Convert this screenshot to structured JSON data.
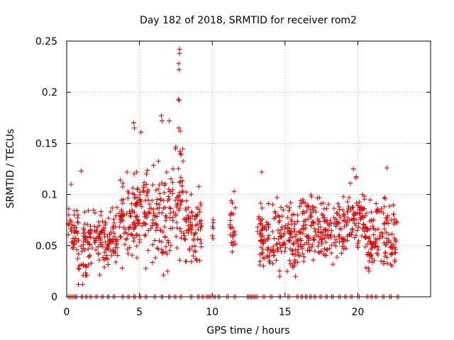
{
  "chart_data": {
    "type": "scatter",
    "title": "Day 182 of 2018, SRMTID for receiver rom2",
    "xlabel": "GPS time / hours",
    "ylabel": "SRMTID / TECUs",
    "xlim": [
      0,
      25
    ],
    "ylim": [
      0,
      0.25
    ],
    "x_ticks": [
      0,
      5,
      10,
      15,
      20
    ],
    "x_tick_labels": [
      "0",
      "5",
      "10",
      "15",
      "20"
    ],
    "y_ticks": [
      0,
      0.05,
      0.1,
      0.15,
      0.2,
      0.25
    ],
    "y_tick_labels": [
      "0",
      "0.05",
      "0.1",
      "0.15",
      "0.2",
      "0.25"
    ],
    "grid": true,
    "marker": "+",
    "color": "#e00000",
    "series": [
      {
        "name": "SRMTID",
        "segments": [
          {
            "x_start": 0.1,
            "x_end": 0.8,
            "baseline": 0.065,
            "spread": 0.02
          },
          {
            "x_start": 0.8,
            "x_end": 1.4,
            "baseline": 0.045,
            "spread": 0.025
          },
          {
            "x_start": 1.4,
            "x_end": 3.5,
            "baseline": 0.055,
            "spread": 0.02
          },
          {
            "x_start": 3.5,
            "x_end": 4.8,
            "baseline": 0.075,
            "spread": 0.03
          },
          {
            "x_start": 4.8,
            "x_end": 6.0,
            "baseline": 0.085,
            "spread": 0.035
          },
          {
            "x_start": 6.0,
            "x_end": 7.2,
            "baseline": 0.08,
            "spread": 0.035
          },
          {
            "x_start": 7.2,
            "x_end": 8.0,
            "baseline": 0.095,
            "spread": 0.04
          },
          {
            "x_start": 8.0,
            "x_end": 9.3,
            "baseline": 0.07,
            "spread": 0.025
          },
          {
            "x_start": 10.0,
            "x_end": 10.1,
            "baseline": 0.06,
            "spread": 0.01
          },
          {
            "x_start": 11.2,
            "x_end": 11.6,
            "baseline": 0.065,
            "spread": 0.02
          },
          {
            "x_start": 13.1,
            "x_end": 16.0,
            "baseline": 0.055,
            "spread": 0.025
          },
          {
            "x_start": 16.0,
            "x_end": 19.2,
            "baseline": 0.065,
            "spread": 0.025
          },
          {
            "x_start": 19.2,
            "x_end": 20.5,
            "baseline": 0.075,
            "spread": 0.025
          },
          {
            "x_start": 20.5,
            "x_end": 22.7,
            "baseline": 0.06,
            "spread": 0.025
          }
        ],
        "peaks": [
          {
            "x": 7.75,
            "y": 0.242
          },
          {
            "x": 7.75,
            "y": 0.238
          },
          {
            "x": 7.7,
            "y": 0.228
          },
          {
            "x": 7.72,
            "y": 0.222
          },
          {
            "x": 7.68,
            "y": 0.193
          },
          {
            "x": 7.73,
            "y": 0.192
          },
          {
            "x": 6.5,
            "y": 0.177
          },
          {
            "x": 6.55,
            "y": 0.172
          },
          {
            "x": 7.05,
            "y": 0.172
          },
          {
            "x": 4.6,
            "y": 0.17
          },
          {
            "x": 4.65,
            "y": 0.165
          },
          {
            "x": 7.7,
            "y": 0.165
          },
          {
            "x": 7.8,
            "y": 0.162
          },
          {
            "x": 5.1,
            "y": 0.161
          },
          {
            "x": 22.0,
            "y": 0.126
          },
          {
            "x": 19.7,
            "y": 0.125
          },
          {
            "x": 1.0,
            "y": 0.123
          },
          {
            "x": 13.4,
            "y": 0.122
          },
          {
            "x": 0.3,
            "y": 0.11
          },
          {
            "x": 11.5,
            "y": 0.103
          }
        ],
        "zero_points_x": [
          0.1,
          0.3,
          0.5,
          0.6,
          1.0,
          1.3,
          1.6,
          2.0,
          2.4,
          2.8,
          3.2,
          3.8,
          4.2,
          4.6,
          5.0,
          5.4,
          6.0,
          6.5,
          7.0,
          7.4,
          7.8,
          8.5,
          9.0,
          9.3,
          9.6,
          9.8,
          10.1,
          10.4,
          11.0,
          11.5,
          12.4,
          12.6,
          12.8,
          13.0,
          13.5,
          14.0,
          14.6,
          15.2,
          15.8,
          16.1,
          16.4,
          16.7,
          17.0,
          17.4,
          17.8,
          18.2,
          18.7,
          19.1,
          19.5,
          20.0,
          20.6,
          20.9,
          21.2,
          21.7,
          22.2,
          22.7
        ]
      }
    ]
  }
}
